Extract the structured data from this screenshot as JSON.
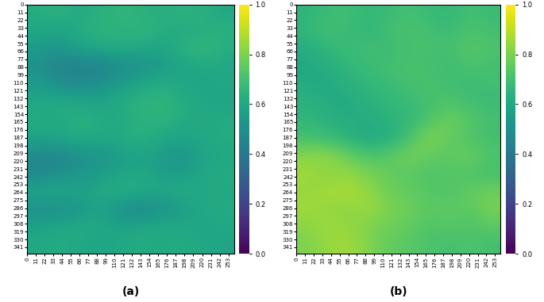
{
  "chart_data": [
    {
      "type": "heatmap",
      "label": "(a)",
      "xlim": [
        0,
        260
      ],
      "ylim": [
        350,
        0
      ],
      "xticks": [
        0,
        11,
        22,
        33,
        44,
        55,
        66,
        77,
        88,
        99,
        110,
        121,
        132,
        143,
        154,
        165,
        176,
        187,
        198,
        209,
        220,
        231,
        242,
        253
      ],
      "yticks": [
        0,
        11,
        22,
        33,
        44,
        55,
        66,
        77,
        88,
        99,
        110,
        121,
        132,
        143,
        154,
        165,
        176,
        187,
        198,
        209,
        220,
        231,
        242,
        253,
        264,
        275,
        286,
        297,
        308,
        319,
        330,
        341
      ],
      "colorbar_range": [
        0,
        1
      ],
      "colorbar_ticks": [
        {
          "value": 0,
          "label": "0.0"
        },
        {
          "value": 0.2,
          "label": "0.2"
        },
        {
          "value": 0.4,
          "label": "0.4"
        },
        {
          "value": 0.6,
          "label": "0.6"
        },
        {
          "value": 0.8,
          "label": "0.8"
        },
        {
          "value": 1,
          "label": "1.0"
        }
      ],
      "cells": [
        [
          0.62,
          0.65,
          0.6,
          0.63,
          0.66,
          0.64,
          0.62,
          0.65,
          0.63,
          0.6
        ],
        [
          0.6,
          0.58,
          0.62,
          0.65,
          0.64,
          0.66,
          0.63,
          0.6,
          0.62,
          0.64
        ],
        [
          0.55,
          0.52,
          0.58,
          0.6,
          0.62,
          0.6,
          0.58,
          0.64,
          0.68,
          0.62
        ],
        [
          0.5,
          0.45,
          0.42,
          0.44,
          0.48,
          0.5,
          0.55,
          0.58,
          0.6,
          0.6
        ],
        [
          0.55,
          0.5,
          0.48,
          0.5,
          0.55,
          0.6,
          0.62,
          0.6,
          0.58,
          0.6
        ],
        [
          0.6,
          0.62,
          0.6,
          0.58,
          0.62,
          0.65,
          0.66,
          0.62,
          0.6,
          0.58
        ],
        [
          0.62,
          0.6,
          0.64,
          0.62,
          0.6,
          0.63,
          0.65,
          0.62,
          0.6,
          0.62
        ],
        [
          0.58,
          0.6,
          0.62,
          0.6,
          0.62,
          0.64,
          0.6,
          0.58,
          0.6,
          0.62
        ],
        [
          0.48,
          0.45,
          0.5,
          0.52,
          0.55,
          0.58,
          0.55,
          0.52,
          0.58,
          0.6
        ],
        [
          0.45,
          0.5,
          0.52,
          0.55,
          0.58,
          0.6,
          0.56,
          0.55,
          0.6,
          0.62
        ],
        [
          0.6,
          0.62,
          0.58,
          0.6,
          0.64,
          0.62,
          0.6,
          0.62,
          0.6,
          0.6
        ],
        [
          0.5,
          0.48,
          0.52,
          0.58,
          0.5,
          0.45,
          0.5,
          0.55,
          0.6,
          0.62
        ],
        [
          0.58,
          0.6,
          0.62,
          0.6,
          0.58,
          0.6,
          0.62,
          0.6,
          0.58,
          0.6
        ],
        [
          0.6,
          0.62,
          0.6,
          0.58,
          0.6,
          0.62,
          0.6,
          0.62,
          0.6,
          0.58
        ]
      ]
    },
    {
      "type": "heatmap",
      "label": "(b)",
      "xlim": [
        0,
        260
      ],
      "ylim": [
        350,
        0
      ],
      "xticks": [
        0,
        11,
        22,
        33,
        44,
        55,
        66,
        77,
        88,
        99,
        110,
        121,
        132,
        143,
        154,
        165,
        176,
        187,
        198,
        209,
        220,
        231,
        242,
        253
      ],
      "yticks": [
        0,
        11,
        22,
        33,
        44,
        55,
        66,
        77,
        88,
        99,
        110,
        121,
        132,
        143,
        154,
        165,
        176,
        187,
        198,
        209,
        220,
        231,
        242,
        253,
        264,
        275,
        286,
        297,
        308,
        319,
        330,
        341
      ],
      "colorbar_range": [
        0,
        1
      ],
      "colorbar_ticks": [
        {
          "value": 0,
          "label": "0.0"
        },
        {
          "value": 0.2,
          "label": "0.2"
        },
        {
          "value": 0.4,
          "label": "0.4"
        },
        {
          "value": 0.6,
          "label": "0.6"
        },
        {
          "value": 0.8,
          "label": "0.8"
        },
        {
          "value": 1,
          "label": "1.0"
        }
      ],
      "cells": [
        [
          0.65,
          0.68,
          0.7,
          0.66,
          0.68,
          0.7,
          0.68,
          0.66,
          0.7,
          0.68
        ],
        [
          0.66,
          0.7,
          0.68,
          0.65,
          0.7,
          0.72,
          0.7,
          0.68,
          0.72,
          0.7
        ],
        [
          0.62,
          0.66,
          0.68,
          0.7,
          0.68,
          0.7,
          0.72,
          0.7,
          0.74,
          0.72
        ],
        [
          0.6,
          0.62,
          0.66,
          0.68,
          0.7,
          0.72,
          0.7,
          0.68,
          0.72,
          0.7
        ],
        [
          0.62,
          0.6,
          0.64,
          0.66,
          0.68,
          0.7,
          0.72,
          0.7,
          0.68,
          0.7
        ],
        [
          0.64,
          0.62,
          0.6,
          0.64,
          0.66,
          0.68,
          0.7,
          0.72,
          0.7,
          0.68
        ],
        [
          0.66,
          0.64,
          0.62,
          0.62,
          0.64,
          0.66,
          0.72,
          0.78,
          0.74,
          0.7
        ],
        [
          0.7,
          0.68,
          0.64,
          0.6,
          0.62,
          0.7,
          0.82,
          0.76,
          0.72,
          0.7
        ],
        [
          0.82,
          0.84,
          0.78,
          0.72,
          0.74,
          0.8,
          0.76,
          0.74,
          0.78,
          0.72
        ],
        [
          0.86,
          0.82,
          0.84,
          0.8,
          0.76,
          0.74,
          0.72,
          0.74,
          0.72,
          0.7
        ],
        [
          0.84,
          0.86,
          0.88,
          0.84,
          0.78,
          0.76,
          0.74,
          0.72,
          0.76,
          0.78
        ],
        [
          0.86,
          0.84,
          0.82,
          0.86,
          0.8,
          0.78,
          0.74,
          0.76,
          0.74,
          0.8
        ],
        [
          0.82,
          0.86,
          0.84,
          0.8,
          0.78,
          0.76,
          0.72,
          0.74,
          0.72,
          0.74
        ],
        [
          0.8,
          0.84,
          0.86,
          0.82,
          0.76,
          0.74,
          0.72,
          0.7,
          0.72,
          0.7
        ]
      ]
    }
  ]
}
